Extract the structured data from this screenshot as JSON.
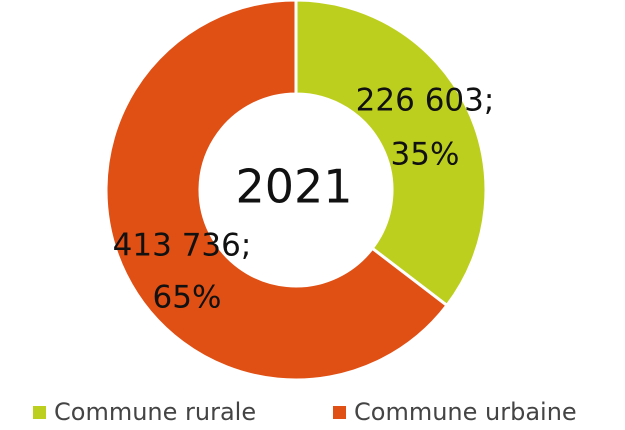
{
  "chart_data": {
    "type": "donut",
    "center_label": "2021",
    "categories": [
      "Commune rurale",
      "Commune urbaine"
    ],
    "values": [
      226603,
      413736
    ],
    "value_labels": [
      "226 603;",
      "413 736;"
    ],
    "percentages": [
      {
        "value": 35,
        "label": "35%"
      },
      {
        "value": 65,
        "label": "65%"
      }
    ],
    "colors": [
      "#bdcf1e",
      "#e04f14"
    ],
    "percentage_colors": [
      "#111111",
      "#555555"
    ],
    "legend": "bottom"
  }
}
